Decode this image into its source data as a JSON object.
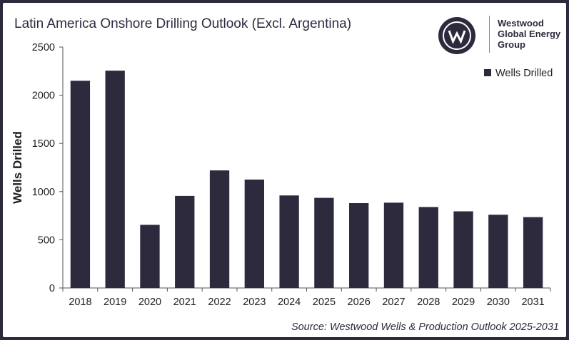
{
  "header": {
    "title": "Latin America Onshore Drilling Outlook (Excl. Argentina)"
  },
  "brand": {
    "icon": "westwood-w-logo",
    "name_lines": [
      "Westwood",
      "Global Energy",
      "Group"
    ]
  },
  "footer": {
    "source": "Source: Westwood Wells & Production Outlook 2025-2031"
  },
  "colors": {
    "bar": "#2d2a3e",
    "frame": "#2d2a3e",
    "text": "#2d2a3e"
  },
  "chart_data": {
    "type": "bar",
    "title": "Latin America Onshore Drilling Outlook (Excl. Argentina)",
    "xlabel": "",
    "ylabel": "Wells Drilled",
    "categories": [
      "2018",
      "2019",
      "2020",
      "2021",
      "2022",
      "2023",
      "2024",
      "2025",
      "2026",
      "2027",
      "2028",
      "2029",
      "2030",
      "2031"
    ],
    "series": [
      {
        "name": "Wells Drilled",
        "values": [
          2150,
          2255,
          655,
          955,
          1220,
          1125,
          960,
          935,
          880,
          885,
          840,
          795,
          760,
          735
        ]
      }
    ],
    "ylim": [
      0,
      2500
    ],
    "yticks": [
      0,
      500,
      1000,
      1500,
      2000,
      2500
    ],
    "grid": false,
    "legend": "top-right"
  }
}
